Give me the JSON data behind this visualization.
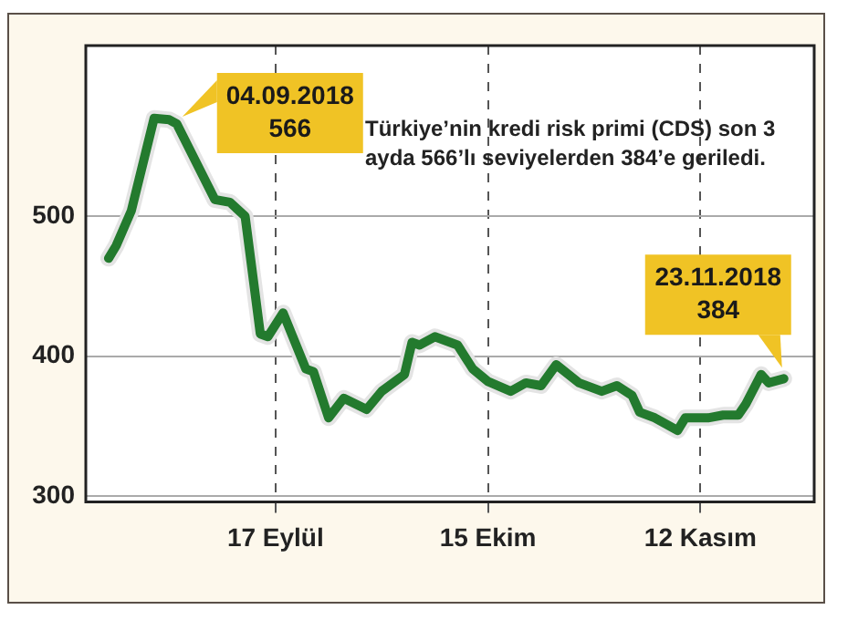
{
  "chart_data": {
    "type": "line",
    "x": [
      "2018-08-26",
      "2018-08-27",
      "2018-08-29",
      "2018-09-01",
      "2018-09-03",
      "2018-09-04",
      "2018-09-09",
      "2018-09-11",
      "2018-09-13",
      "2018-09-15",
      "2018-09-16",
      "2018-09-18",
      "2018-09-21",
      "2018-09-22",
      "2018-09-24",
      "2018-09-26",
      "2018-09-29",
      "2018-10-01",
      "2018-10-04",
      "2018-10-05",
      "2018-10-06",
      "2018-10-08",
      "2018-10-11",
      "2018-10-13",
      "2018-10-15",
      "2018-10-18",
      "2018-10-20",
      "2018-10-22",
      "2018-10-24",
      "2018-10-27",
      "2018-10-30",
      "2018-11-01",
      "2018-11-03",
      "2018-11-04",
      "2018-11-06",
      "2018-11-09",
      "2018-11-10",
      "2018-11-13",
      "2018-11-15",
      "2018-11-17",
      "2018-11-18",
      "2018-11-20",
      "2018-11-21",
      "2018-11-23"
    ],
    "series": [
      {
        "color": "#237a2e",
        "values": [
          470,
          479,
          504,
          570,
          569,
          566,
          512,
          510,
          500,
          416,
          414,
          431,
          391,
          389,
          356,
          370,
          362,
          375,
          387,
          410,
          408,
          414,
          408,
          391,
          382,
          375,
          381,
          379,
          394,
          381,
          375,
          379,
          372,
          360,
          356,
          347,
          356,
          356,
          358,
          358,
          366,
          387,
          381,
          384
        ]
      }
    ],
    "xlim": [
      "2018-08-23",
      "2018-11-27"
    ],
    "xticks": [
      {
        "value": "2018-09-17",
        "label": "17 Eylül"
      },
      {
        "value": "2018-10-15",
        "label": "15 Ekim"
      },
      {
        "value": "2018-11-12",
        "label": "12 Kasım"
      }
    ],
    "ylim": [
      296,
      622
    ],
    "yticks": [
      300,
      400,
      500
    ],
    "grid": true,
    "legend": false,
    "marker": "none",
    "line_style": "solid",
    "annotations": [
      {
        "text": "04.09.2018\n566",
        "x": "2018-09-04",
        "y": 566
      },
      {
        "text": "23.11.2018\n384",
        "x": "2018-11-23",
        "y": 384
      },
      "Türkiye’nin kredi risk primi (CDS) son 3 ayda 566’lı seviyelerden 384’e geriledi."
    ]
  }
}
